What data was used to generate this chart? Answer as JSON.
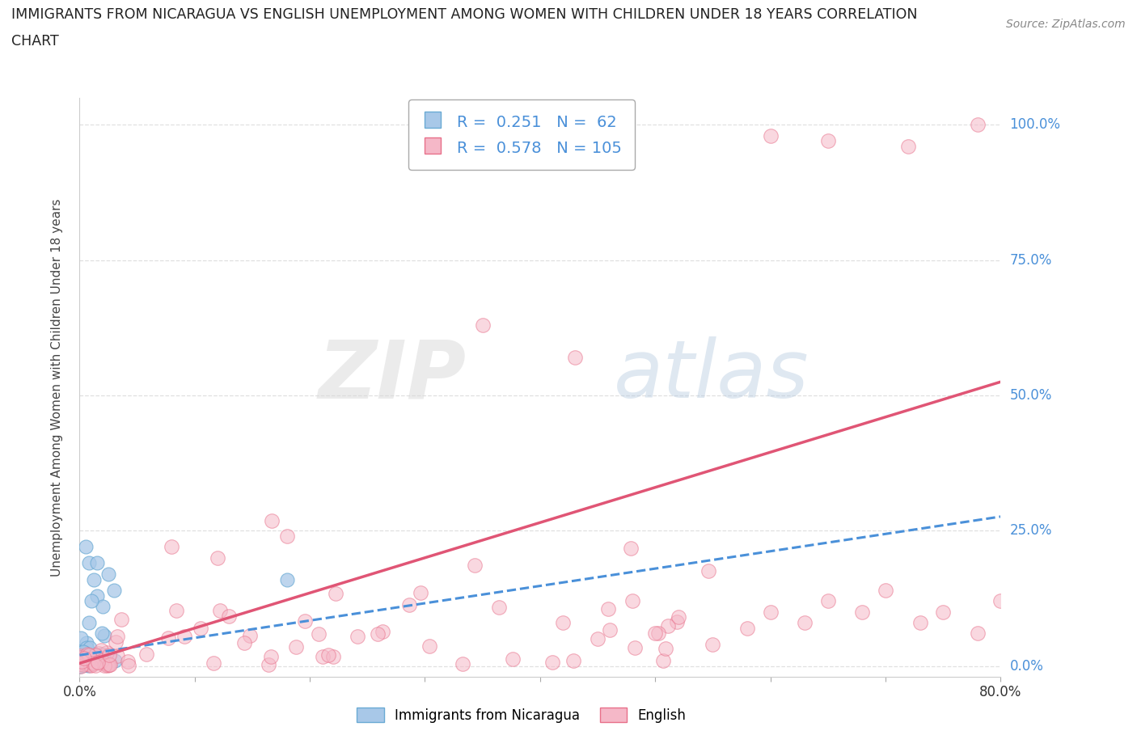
{
  "title_line1": "IMMIGRANTS FROM NICARAGUA VS ENGLISH UNEMPLOYMENT AMONG WOMEN WITH CHILDREN UNDER 18 YEARS CORRELATION",
  "title_line2": "CHART",
  "source": "Source: ZipAtlas.com",
  "ylabel": "Unemployment Among Women with Children Under 18 years",
  "xlim": [
    0.0,
    0.8
  ],
  "ylim": [
    -0.02,
    1.05
  ],
  "yticks": [
    0.0,
    0.25,
    0.5,
    0.75,
    1.0
  ],
  "yticklabels": [
    "0.0%",
    "25.0%",
    "50.0%",
    "75.0%",
    "100.0%"
  ],
  "blue_R": 0.251,
  "blue_N": 62,
  "pink_R": 0.578,
  "pink_N": 105,
  "blue_color": "#a8c8e8",
  "pink_color": "#f5b8c8",
  "blue_edge_color": "#6aaad4",
  "pink_edge_color": "#e8708a",
  "blue_line_color": "#4a90d9",
  "pink_line_color": "#e05575",
  "blue_reg_slope": 0.32,
  "blue_reg_intercept": 0.02,
  "pink_reg_slope": 0.65,
  "pink_reg_intercept": 0.005,
  "watermark_zip": "ZIP",
  "watermark_atlas": "atlas",
  "legend_label_blue": "Immigrants from Nicaragua",
  "legend_label_pink": "English",
  "background_color": "#ffffff",
  "grid_color": "#dddddd",
  "ytick_color": "#4a90d9",
  "title_color": "#222222",
  "source_color": "#888888"
}
